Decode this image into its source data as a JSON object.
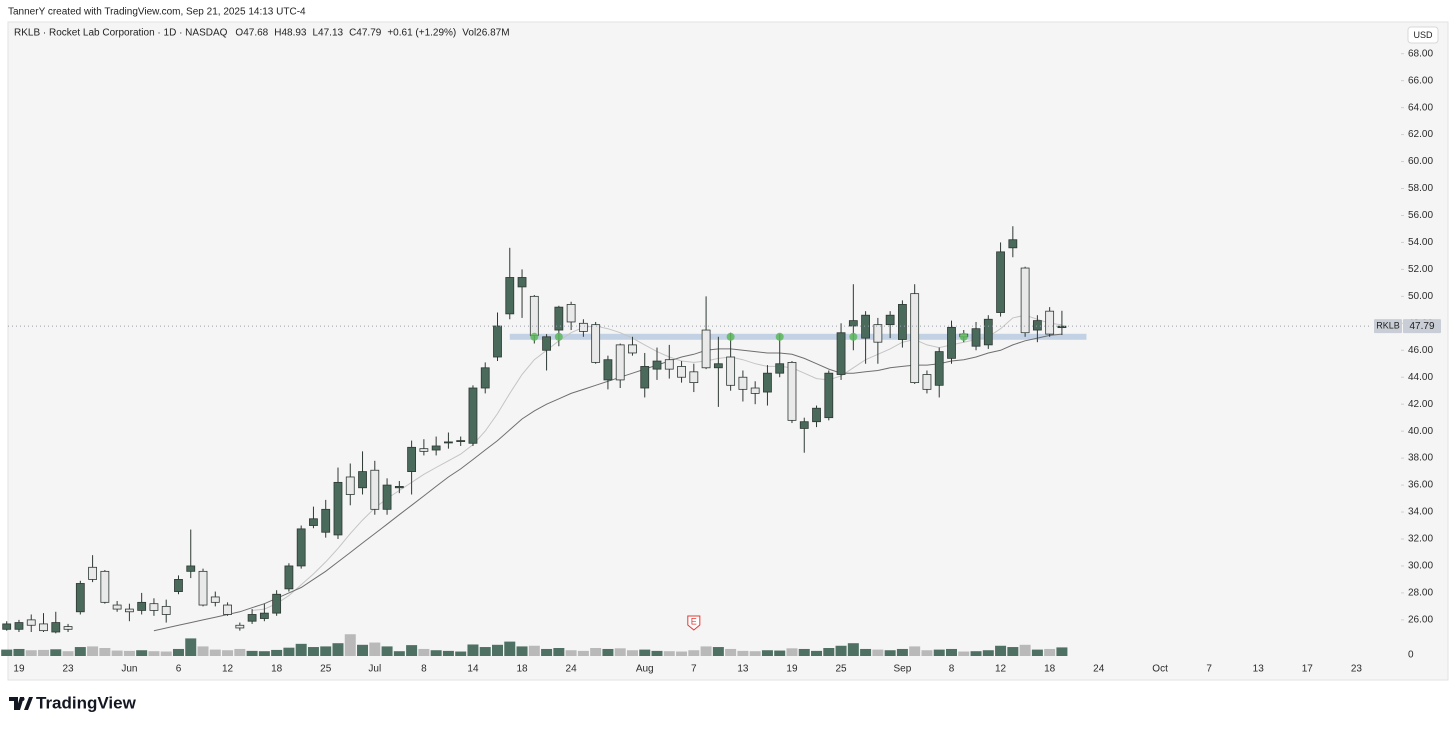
{
  "header": {
    "credit": "TannerY created with TradingView.com, Sep 21, 2025 14:13 UTC-4"
  },
  "chart_data": {
    "type": "candlestick",
    "symbol_line": "RKLB · Rocket Lab Corporation · 1D · NASDAQ",
    "ohlc_labels": [
      "O47.68",
      "H48.93",
      "L47.13",
      "C47.79",
      "+0.61 (+1.29%)",
      "Vol26.87M"
    ],
    "currency": "USD",
    "symbol": "RKLB",
    "categories": [
      null,
      "19",
      null,
      null,
      null,
      "23",
      null,
      null,
      null,
      null,
      "Jun",
      null,
      null,
      null,
      "6",
      null,
      null,
      null,
      "12",
      null,
      null,
      null,
      "18",
      null,
      null,
      null,
      "25",
      null,
      null,
      null,
      "Jul",
      null,
      null,
      null,
      "8",
      null,
      null,
      null,
      "14",
      null,
      null,
      null,
      "18",
      null,
      null,
      null,
      "24",
      null,
      null,
      null,
      null,
      null,
      "Aug",
      null,
      null,
      null,
      "7",
      null,
      null,
      null,
      "13",
      null,
      null,
      null,
      "19",
      null,
      null,
      null,
      "25",
      null,
      null,
      null,
      null,
      "Sep",
      null,
      null,
      null,
      "8",
      null,
      null,
      null,
      "12",
      null,
      null,
      null,
      "18",
      null,
      null,
      null,
      "24",
      null,
      null,
      null,
      null,
      "Oct",
      null,
      null,
      null,
      "7",
      null,
      null,
      null,
      "13",
      null,
      null,
      null,
      "17",
      null,
      null,
      null,
      "23"
    ],
    "open": [
      25.3,
      25.3,
      26.0,
      25.7,
      25.1,
      25.5,
      26.6,
      29.9,
      29.6,
      27.1,
      26.8,
      26.7,
      27.2,
      27.0,
      28.1,
      29.6,
      29.6,
      27.7,
      27.1,
      25.6,
      25.9,
      26.1,
      26.5,
      28.3,
      30.0,
      33.0,
      32.5,
      32.3,
      36.6,
      35.8,
      37.1,
      34.2,
      35.8,
      37.0,
      38.7,
      38.6,
      39.2,
      39.3,
      39.1,
      43.2,
      45.5,
      48.7,
      50.7,
      50.0,
      46.0,
      47.5,
      49.4,
      48.0,
      47.9,
      43.8,
      46.4,
      46.4,
      43.2,
      44.6,
      45.3,
      44.8,
      44.4,
      47.5,
      44.7,
      45.5,
      44.0,
      43.2,
      42.9,
      44.3,
      45.1,
      40.2,
      40.7,
      41.0,
      44.2,
      47.8,
      46.9,
      47.9,
      47.9,
      46.8,
      50.2,
      44.2,
      43.4,
      45.4,
      47.2,
      46.3,
      46.4,
      48.8,
      53.6,
      52.1,
      47.5,
      48.9,
      47.68,
      null,
      null,
      null,
      null,
      null,
      null,
      null,
      null,
      null,
      null,
      null,
      null,
      null,
      null,
      null,
      null,
      null,
      null,
      null,
      null,
      null,
      null,
      null,
      null
    ],
    "high": [
      25.9,
      26.0,
      26.4,
      26.5,
      26.6,
      25.7,
      28.9,
      30.8,
      29.7,
      27.4,
      27.2,
      28.0,
      27.6,
      27.5,
      29.3,
      32.7,
      29.8,
      28.1,
      27.3,
      25.8,
      26.8,
      27.2,
      28.2,
      30.2,
      33.0,
      34.4,
      34.9,
      37.3,
      37.6,
      38.5,
      37.8,
      36.5,
      36.3,
      39.3,
      39.4,
      39.6,
      39.9,
      39.6,
      43.4,
      45.1,
      48.8,
      53.6,
      52.0,
      50.1,
      47.2,
      49.3,
      49.6,
      48.3,
      48.1,
      45.6,
      46.5,
      47.0,
      45.8,
      46.2,
      46.4,
      45.2,
      45.0,
      50.0,
      47.0,
      47.3,
      44.5,
      43.7,
      44.9,
      47.2,
      45.2,
      41.0,
      41.9,
      44.5,
      48.0,
      50.9,
      48.9,
      48.4,
      48.9,
      49.7,
      50.9,
      44.5,
      46.2,
      48.2,
      47.5,
      48.1,
      48.6,
      54.0,
      55.2,
      52.2,
      48.6,
      49.2,
      48.93,
      null,
      null,
      null,
      null,
      null,
      null,
      null,
      null,
      null,
      null,
      null,
      null,
      null,
      null,
      null,
      null,
      null,
      null,
      null,
      null,
      null,
      null,
      null,
      null
    ],
    "low": [
      25.2,
      25.1,
      25.1,
      25.1,
      25.0,
      25.1,
      26.4,
      28.8,
      27.2,
      26.6,
      25.9,
      26.4,
      26.3,
      25.8,
      27.9,
      29.1,
      27.0,
      27.0,
      26.3,
      25.2,
      25.7,
      25.9,
      26.3,
      28.1,
      29.8,
      32.8,
      32.1,
      32.0,
      34.5,
      35.3,
      33.8,
      33.8,
      35.4,
      35.3,
      38.2,
      38.2,
      38.7,
      38.9,
      38.9,
      42.8,
      45.2,
      48.3,
      48.4,
      46.5,
      44.5,
      46.3,
      47.5,
      47.0,
      45.0,
      43.1,
      43.2,
      45.6,
      42.5,
      43.8,
      43.9,
      43.6,
      42.9,
      44.6,
      41.8,
      43.0,
      42.2,
      42.0,
      41.9,
      44.0,
      40.6,
      38.4,
      40.3,
      40.8,
      43.8,
      46.0,
      45.0,
      45.0,
      46.9,
      46.2,
      43.5,
      42.8,
      42.5,
      45.0,
      46.6,
      46.0,
      46.1,
      48.5,
      52.9,
      47.0,
      46.6,
      47.0,
      47.13,
      null,
      null,
      null,
      null,
      null,
      null,
      null,
      null,
      null,
      null,
      null,
      null,
      null,
      null,
      null,
      null,
      null,
      null,
      null,
      null,
      null,
      null,
      null,
      null
    ],
    "close": [
      25.7,
      25.8,
      25.6,
      25.2,
      25.8,
      25.3,
      28.7,
      29.0,
      27.3,
      26.8,
      26.6,
      27.3,
      26.7,
      26.4,
      29.0,
      30.0,
      27.1,
      27.3,
      26.4,
      25.4,
      26.4,
      26.5,
      27.9,
      30.0,
      32.75,
      33.5,
      34.2,
      36.2,
      35.3,
      37.0,
      34.2,
      36.0,
      35.9,
      38.8,
      38.5,
      38.9,
      39.2,
      39.3,
      43.2,
      44.7,
      47.8,
      51.4,
      51.4,
      47.1,
      47.0,
      49.2,
      48.1,
      47.4,
      45.1,
      45.3,
      43.8,
      45.8,
      44.8,
      45.2,
      44.6,
      44.0,
      43.6,
      44.7,
      45.0,
      43.4,
      43.1,
      42.8,
      44.3,
      45.0,
      40.8,
      40.7,
      41.7,
      44.3,
      47.3,
      48.2,
      48.6,
      46.6,
      48.6,
      49.4,
      43.6,
      43.1,
      45.9,
      47.7,
      47.0,
      47.6,
      48.3,
      53.3,
      54.2,
      47.3,
      48.2,
      47.2,
      47.79,
      null,
      null,
      null,
      null,
      null,
      null,
      null,
      null,
      null,
      null,
      null,
      null,
      null,
      null,
      null,
      null,
      null,
      null,
      null,
      null,
      null,
      null,
      null,
      null
    ],
    "up_color": "#4a6a5c",
    "down_color": "#e9e9e9",
    "ylim": [
      25.1,
      70.5
    ],
    "yticks": [
      {
        "value": 26,
        "label": "26.00"
      },
      {
        "value": 28,
        "label": "28.00"
      },
      {
        "value": 30,
        "label": "30.00"
      },
      {
        "value": 32,
        "label": "32.00"
      },
      {
        "value": 34,
        "label": "34.00"
      },
      {
        "value": 36,
        "label": "36.00"
      },
      {
        "value": 38,
        "label": "38.00"
      },
      {
        "value": 40,
        "label": "40.00"
      },
      {
        "value": 42,
        "label": "42.00"
      },
      {
        "value": 44,
        "label": "44.00"
      },
      {
        "value": 46,
        "label": "46.00"
      },
      {
        "value": 48,
        "label": "48.00"
      },
      {
        "value": 50,
        "label": "50.00"
      },
      {
        "value": 52,
        "label": "52.00"
      },
      {
        "value": 54,
        "label": "54.00"
      },
      {
        "value": 56,
        "label": "56.00"
      },
      {
        "value": 58,
        "label": "58.00"
      },
      {
        "value": 60,
        "label": "60.00"
      },
      {
        "value": 62,
        "label": "62.00"
      },
      {
        "value": 64,
        "label": "64.00"
      },
      {
        "value": 66,
        "label": "66.00"
      },
      {
        "value": 68,
        "label": "68.00"
      }
    ],
    "grid": false,
    "volume": {
      "values": [
        20,
        22,
        18,
        19,
        21,
        15,
        28,
        30,
        25,
        17,
        16,
        18,
        15,
        14,
        22,
        55,
        30,
        20,
        18,
        22,
        16,
        15,
        19,
        26,
        38,
        28,
        30,
        40,
        68,
        35,
        42,
        30,
        15,
        34,
        22,
        18,
        16,
        14,
        36,
        28,
        35,
        45,
        30,
        32,
        22,
        25,
        18,
        16,
        25,
        22,
        24,
        18,
        20,
        16,
        15,
        14,
        18,
        30,
        28,
        22,
        16,
        15,
        18,
        17,
        24,
        22,
        16,
        25,
        32,
        40,
        22,
        20,
        18,
        22,
        30,
        18,
        20,
        22,
        14,
        15,
        18,
        32,
        28,
        35,
        20,
        22,
        26.87,
        null,
        null,
        null,
        null,
        null,
        null,
        null,
        null,
        null,
        null,
        null,
        null,
        null,
        null,
        null,
        null,
        null,
        null,
        null,
        null,
        null,
        null,
        null,
        null
      ],
      "ylim": [
        0,
        75
      ],
      "yticks": [
        0
      ],
      "up_color": "#4f7163",
      "down_color": "#b9b9b9"
    },
    "moving_averages": [
      {
        "color": "#c4c4c4",
        "values": [
          null,
          null,
          null,
          null,
          null,
          null,
          null,
          null,
          null,
          null,
          null,
          null,
          null,
          null,
          null,
          null,
          null,
          null,
          null,
          null,
          26.7,
          26.8,
          27.2,
          27.8,
          28.6,
          29.4,
          30.3,
          31.3,
          32.4,
          33.4,
          34.3,
          35.0,
          35.6,
          36.2,
          36.8,
          37.3,
          37.8,
          38.3,
          39.0,
          40.0,
          41.3,
          42.8,
          44.2,
          45.3,
          46.0,
          46.7,
          47.3,
          47.7,
          47.8,
          47.6,
          47.3,
          46.9,
          46.4,
          45.9,
          45.5,
          45.2,
          45.1,
          45.2,
          45.4,
          45.5,
          45.3,
          45.0,
          44.8,
          44.8,
          44.7,
          44.3,
          43.9,
          43.8,
          44.1,
          44.7,
          45.3,
          45.7,
          46.1,
          46.6,
          46.8,
          46.4,
          46.2,
          46.4,
          46.6,
          46.8,
          47.0,
          47.6,
          48.4,
          48.6,
          48.3,
          48.0,
          47.9,
          null,
          null,
          null,
          null,
          null,
          null,
          null,
          null,
          null,
          null,
          null,
          null,
          null,
          null,
          null,
          null,
          null,
          null,
          null,
          null,
          null,
          null,
          null,
          null
        ]
      },
      {
        "color": "#6f6f6f",
        "values": [
          null,
          null,
          null,
          null,
          null,
          null,
          null,
          null,
          null,
          null,
          null,
          null,
          25.2,
          25.4,
          25.6,
          25.8,
          26.0,
          26.2,
          26.4,
          26.6,
          26.9,
          27.2,
          27.6,
          28.0,
          28.4,
          29.0,
          29.6,
          30.3,
          31.0,
          31.7,
          32.4,
          33.1,
          33.8,
          34.5,
          35.2,
          35.9,
          36.6,
          37.2,
          37.9,
          38.6,
          39.3,
          40.1,
          40.9,
          41.5,
          42.0,
          42.4,
          42.8,
          43.1,
          43.4,
          43.7,
          44.0,
          44.3,
          44.6,
          44.9,
          45.2,
          45.5,
          45.7,
          46.0,
          46.1,
          46.1,
          46.0,
          45.9,
          45.8,
          45.8,
          45.7,
          45.4,
          45.0,
          44.6,
          44.3,
          44.3,
          44.4,
          44.5,
          44.7,
          44.8,
          44.9,
          44.9,
          45.0,
          45.2,
          45.3,
          45.5,
          45.8,
          46.0,
          46.4,
          46.7,
          46.9,
          47.1,
          47.2,
          null,
          null,
          null,
          null,
          null,
          null,
          null,
          null,
          null,
          null,
          null,
          null,
          null,
          null,
          null,
          null,
          null,
          null,
          null,
          null,
          null,
          null,
          null,
          null
        ]
      }
    ],
    "level": {
      "value": 47.0,
      "color": "#b8cadf",
      "touches": [
        43,
        45,
        59,
        63,
        69,
        78
      ],
      "touch_color": "#5cb85c"
    },
    "earnings": {
      "label": "E",
      "category": 56
    }
  },
  "footer": {
    "brand": "TradingView"
  }
}
